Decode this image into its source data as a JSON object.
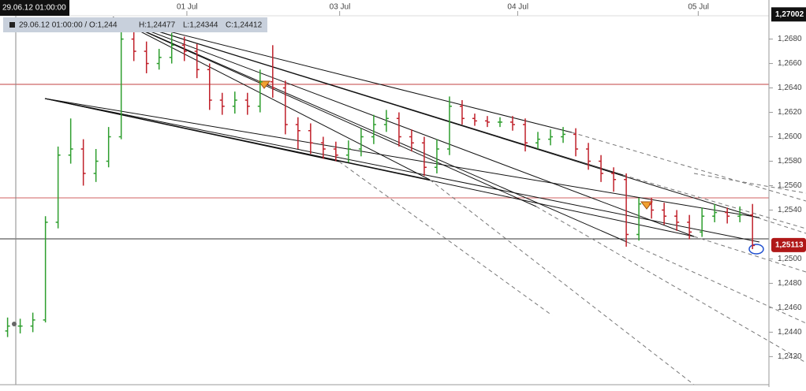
{
  "chart_data": {
    "type": "ohlc",
    "x": [
      0,
      1,
      2,
      3,
      4,
      5,
      6,
      7,
      8,
      9,
      10,
      11,
      12,
      13,
      14,
      15,
      16,
      17,
      18,
      19,
      20,
      21,
      22,
      23,
      24,
      25,
      26,
      27,
      28,
      29,
      30,
      31,
      32,
      33,
      34,
      35,
      36,
      37,
      38,
      39,
      40,
      41,
      42,
      43,
      44,
      45,
      46,
      47,
      48,
      49,
      50,
      51,
      52,
      53,
      54,
      55,
      56,
      57,
      58,
      59
    ],
    "open": [
      1.2441,
      1.2445,
      1.2445,
      1.245,
      1.253,
      1.2585,
      1.259,
      1.257,
      1.258,
      1.26,
      1.268,
      1.267,
      1.266,
      1.2665,
      1.2675,
      1.267,
      1.2655,
      1.263,
      1.2625,
      1.263,
      1.2625,
      1.2645,
      1.264,
      1.261,
      1.2605,
      1.2595,
      1.259,
      1.2585,
      1.259,
      1.26,
      1.261,
      1.2615,
      1.26,
      1.2595,
      1.2575,
      1.259,
      1.2625,
      1.2615,
      1.2613,
      1.2612,
      1.2612,
      1.261,
      1.2595,
      1.2598,
      1.26,
      1.2602,
      1.259,
      1.258,
      1.257,
      1.2565,
      1.252,
      1.2545,
      1.254,
      1.2535,
      1.253,
      1.2522,
      1.2535,
      1.2538,
      1.2535,
      1.2536
    ],
    "high": [
      1.2452,
      1.2451,
      1.2456,
      1.2535,
      1.2592,
      1.2615,
      1.2598,
      1.259,
      1.2608,
      1.269,
      1.2688,
      1.2678,
      1.2672,
      1.2685,
      1.2682,
      1.2676,
      1.266,
      1.2636,
      1.2637,
      1.2636,
      1.2655,
      1.2675,
      1.2646,
      1.2616,
      1.2611,
      1.26,
      1.2596,
      1.2597,
      1.2607,
      1.2618,
      1.2622,
      1.262,
      1.2606,
      1.26,
      1.2598,
      1.2633,
      1.263,
      1.2619,
      1.2617,
      1.2616,
      1.2617,
      1.2615,
      1.2604,
      1.2606,
      1.2608,
      1.2607,
      1.2595,
      1.2585,
      1.2575,
      1.257,
      1.255,
      1.255,
      1.2546,
      1.254,
      1.2536,
      1.2542,
      1.2545,
      1.2542,
      1.2543,
      1.2545
    ],
    "low": [
      1.2436,
      1.2439,
      1.244,
      1.2448,
      1.2525,
      1.2578,
      1.256,
      1.2563,
      1.2575,
      1.2598,
      1.2662,
      1.2652,
      1.2655,
      1.266,
      1.2662,
      1.2648,
      1.2622,
      1.2618,
      1.2619,
      1.2618,
      1.262,
      1.2632,
      1.2602,
      1.259,
      1.2586,
      1.2582,
      1.258,
      1.2579,
      1.2584,
      1.2594,
      1.2604,
      1.2592,
      1.2588,
      1.2568,
      1.257,
      1.2585,
      1.261,
      1.2609,
      1.2608,
      1.2608,
      1.2605,
      1.2588,
      1.259,
      1.2593,
      1.2595,
      1.2584,
      1.2573,
      1.2563,
      1.2555,
      1.251,
      1.2515,
      1.2533,
      1.2528,
      1.2523,
      1.2516,
      1.2518,
      1.253,
      1.2529,
      1.253,
      1.2508
    ],
    "close": [
      1.2445,
      1.2445,
      1.245,
      1.253,
      1.2585,
      1.259,
      1.257,
      1.258,
      1.26,
      1.268,
      1.267,
      1.266,
      1.2665,
      1.2675,
      1.267,
      1.2655,
      1.263,
      1.2625,
      1.263,
      1.2625,
      1.2645,
      1.264,
      1.261,
      1.2605,
      1.2595,
      1.259,
      1.2585,
      1.259,
      1.26,
      1.261,
      1.2615,
      1.26,
      1.2595,
      1.2575,
      1.259,
      1.2625,
      1.2615,
      1.2613,
      1.2612,
      1.2612,
      1.261,
      1.2595,
      1.2598,
      1.26,
      1.2602,
      1.259,
      1.258,
      1.257,
      1.2565,
      1.252,
      1.2545,
      1.254,
      1.2535,
      1.253,
      1.2522,
      1.2535,
      1.2538,
      1.2535,
      1.2536,
      1.2511
    ],
    "up_color": "#2e9e2e",
    "down_color": "#c0202a",
    "xlim": [
      -0.6,
      60.3
    ],
    "xticks": [
      {
        "value": 14.2,
        "label": "01 Jul"
      },
      {
        "value": 26.3,
        "label": "03 Jul"
      },
      {
        "value": 40.4,
        "label": "04 Jul"
      },
      {
        "value": 54.7,
        "label": "05 Jul"
      }
    ],
    "ylim": [
      1.2397,
      1.2712
    ],
    "yticks": [
      {
        "value": 1.268,
        "label": "1,2680"
      },
      {
        "value": 1.266,
        "label": "1,2660"
      },
      {
        "value": 1.264,
        "label": "1,2640"
      },
      {
        "value": 1.262,
        "label": "1,2620"
      },
      {
        "value": 1.26,
        "label": "1,2600"
      },
      {
        "value": 1.258,
        "label": "1,2580"
      },
      {
        "value": 1.256,
        "label": "1,2560"
      },
      {
        "value": 1.254,
        "label": "1,2540"
      },
      {
        "value": 1.25,
        "label": "1,2500"
      },
      {
        "value": 1.248,
        "label": "1,2480"
      },
      {
        "value": 1.246,
        "label": "1,2460"
      },
      {
        "value": 1.244,
        "label": "1,2440"
      },
      {
        "value": 1.242,
        "label": "1,2420"
      }
    ],
    "high_price": {
      "value": 1.27002,
      "label": "1,27002"
    },
    "last_price": {
      "value": 1.25113,
      "label": "1,25113"
    },
    "crosshair_time": "29.06.12 01:00:00",
    "info": {
      "time": "29.06.12 01:00:00 / O:1,244",
      "high": "H:1,24477",
      "low": "L:1,24344",
      "close": "C:1,24412"
    }
  }
}
